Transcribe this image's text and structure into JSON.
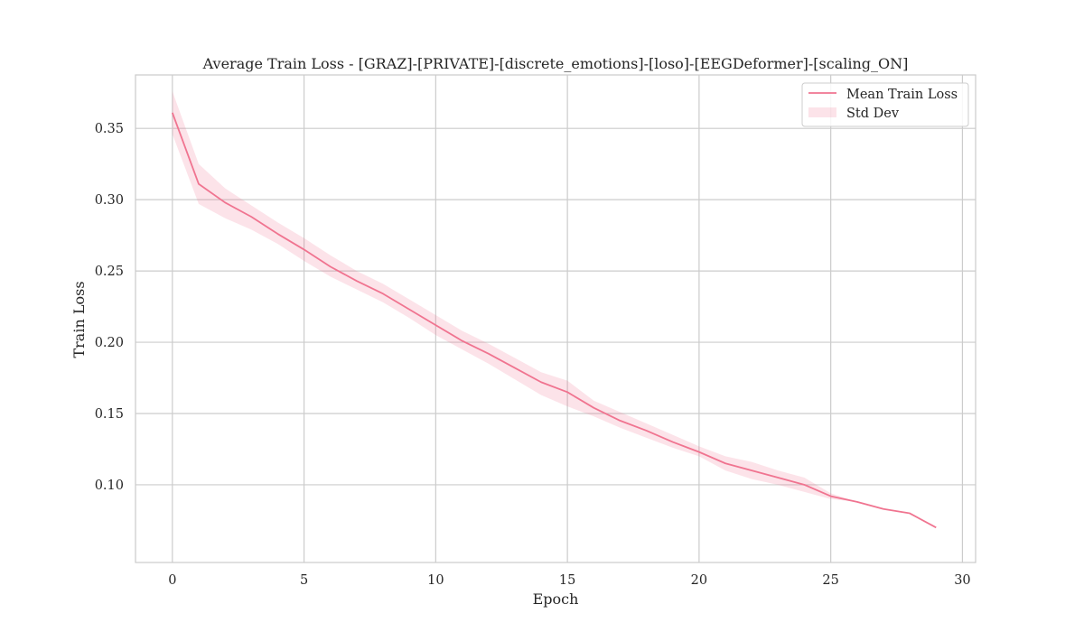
{
  "chart_data": {
    "type": "line",
    "title": "Average Train Loss - [GRAZ]-[PRIVATE]-[discrete_emotions]-[loso]-[EEGDeformer]-[scaling_ON]",
    "xlabel": "Epoch",
    "ylabel": "Train Loss",
    "xlim": [
      -1.4,
      30.5
    ],
    "ylim": [
      0.0455,
      0.3875
    ],
    "xticks": [
      0,
      5,
      10,
      15,
      20,
      25,
      30
    ],
    "yticks": [
      0.1,
      0.15,
      0.2,
      0.25,
      0.3,
      0.35
    ],
    "xtick_labels": [
      "0",
      "5",
      "10",
      "15",
      "20",
      "25",
      "30"
    ],
    "ytick_labels": [
      "0.10",
      "0.15",
      "0.20",
      "0.25",
      "0.30",
      "0.35"
    ],
    "grid": true,
    "legend_position": "top-right",
    "series": [
      {
        "name": "Mean Train Loss",
        "color": "#f07490",
        "x": [
          0,
          1,
          2,
          3,
          4,
          5,
          6,
          7,
          8,
          9,
          10,
          11,
          12,
          13,
          14,
          15,
          16,
          17,
          18,
          19,
          20,
          21,
          22,
          23,
          24,
          25,
          26,
          27,
          28,
          29
        ],
        "values": [
          0.361,
          0.311,
          0.298,
          0.288,
          0.276,
          0.265,
          0.253,
          0.243,
          0.234,
          0.223,
          0.212,
          0.201,
          0.192,
          0.182,
          0.172,
          0.165,
          0.154,
          0.145,
          0.138,
          0.13,
          0.123,
          0.115,
          0.11,
          0.105,
          0.1,
          0.092,
          0.088,
          0.083,
          0.08,
          0.07
        ]
      },
      {
        "name": "Std Dev",
        "color": "#f07490",
        "type": "band",
        "x": [
          0,
          1,
          2,
          3,
          4,
          5,
          6,
          7,
          8,
          9,
          10,
          11,
          12,
          13,
          14,
          15,
          16,
          17,
          18,
          19,
          20,
          21,
          22,
          23,
          24,
          25,
          26,
          27,
          28,
          29
        ],
        "upper": [
          0.376,
          0.325,
          0.308,
          0.296,
          0.284,
          0.273,
          0.261,
          0.25,
          0.241,
          0.23,
          0.219,
          0.208,
          0.199,
          0.189,
          0.179,
          0.173,
          0.159,
          0.151,
          0.143,
          0.135,
          0.127,
          0.12,
          0.116,
          0.11,
          0.105,
          0.094,
          0.088,
          0.083,
          0.08,
          0.07
        ],
        "lower": [
          0.346,
          0.297,
          0.287,
          0.279,
          0.269,
          0.257,
          0.246,
          0.237,
          0.228,
          0.217,
          0.205,
          0.195,
          0.185,
          0.174,
          0.163,
          0.155,
          0.148,
          0.14,
          0.133,
          0.126,
          0.12,
          0.11,
          0.104,
          0.1,
          0.095,
          0.09,
          0.088,
          0.083,
          0.08,
          0.07
        ]
      }
    ],
    "legend": {
      "entries": [
        "Mean Train Loss",
        "Std Dev"
      ]
    }
  }
}
